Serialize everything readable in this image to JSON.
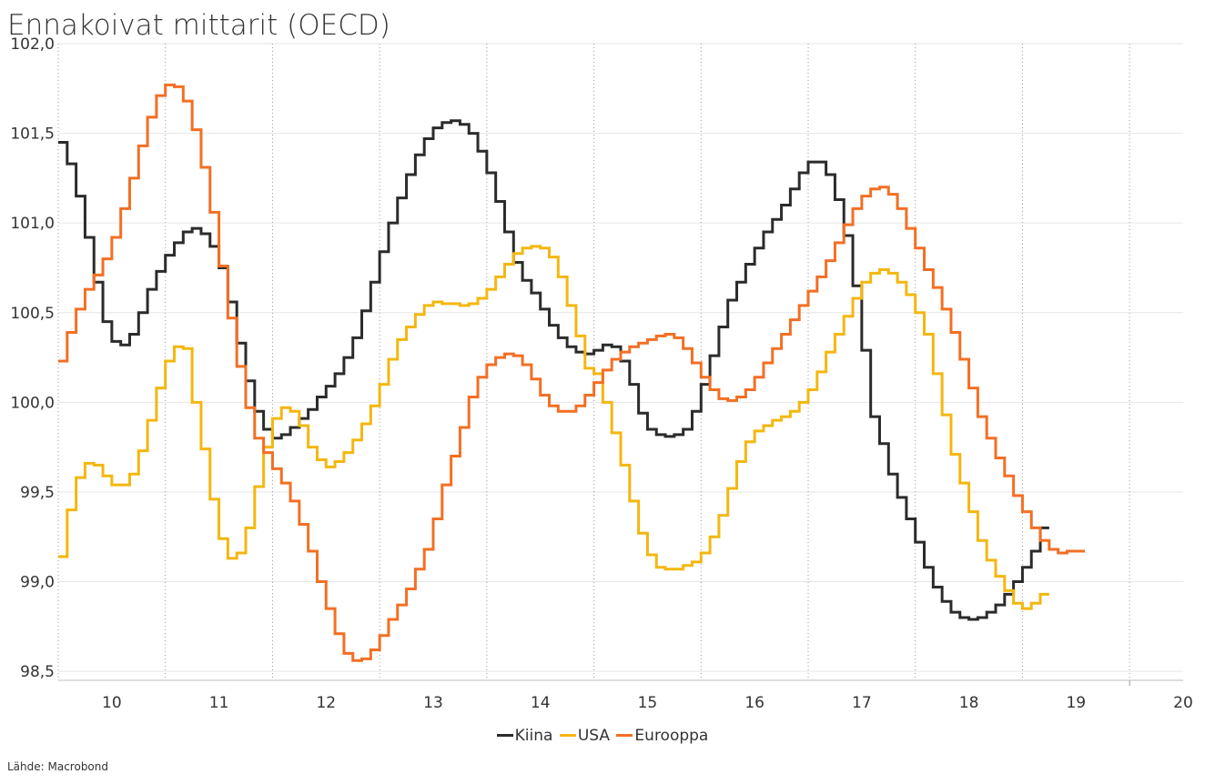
{
  "title": "Ennakoivat mittarit (OECD)",
  "source": "Lähde: Macrobond",
  "chart_data": {
    "type": "line",
    "step": true,
    "title": "Ennakoivat mittarit (OECD)",
    "xlabel": "",
    "ylabel": "",
    "xlim": [
      2009.5,
      2020.0
    ],
    "ylim": [
      98.45,
      102.0
    ],
    "yticks": [
      98.5,
      99.0,
      99.5,
      100.0,
      100.5,
      101.0,
      101.5,
      102.0
    ],
    "ytick_labels": [
      "98,5",
      "99,0",
      "99,5",
      "100,0",
      "100,5",
      "101,0",
      "101,5",
      "102,0"
    ],
    "xtick_labels": [
      "10",
      "11",
      "12",
      "13",
      "14",
      "15",
      "16",
      "17",
      "18",
      "19",
      "20"
    ],
    "xtick_positions": [
      2010,
      2011,
      2012,
      2013,
      2014,
      2015,
      2016,
      2017,
      2018,
      2019,
      2020
    ],
    "year_boundaries": [
      2009.5,
      2010.5,
      2011.5,
      2012.5,
      2013.5,
      2014.5,
      2015.5,
      2016.5,
      2017.5,
      2018.5,
      2019.5
    ],
    "grid": true,
    "legend_position": "bottom-center",
    "x_start": 2009.5,
    "x_step": 0.083333,
    "series": [
      {
        "name": "Kiina",
        "color": "#2b2b2b",
        "values": [
          101.45,
          101.33,
          101.15,
          100.92,
          100.67,
          100.45,
          100.34,
          100.32,
          100.38,
          100.5,
          100.63,
          100.73,
          100.82,
          100.89,
          100.95,
          100.97,
          100.94,
          100.87,
          100.75,
          100.56,
          100.33,
          100.12,
          99.95,
          99.85,
          99.8,
          99.82,
          99.86,
          99.91,
          99.96,
          100.03,
          100.09,
          100.16,
          100.25,
          100.36,
          100.51,
          100.67,
          100.84,
          101.0,
          101.14,
          101.27,
          101.38,
          101.47,
          101.53,
          101.56,
          101.57,
          101.55,
          101.5,
          101.4,
          101.28,
          101.12,
          100.95,
          100.78,
          100.68,
          100.61,
          100.52,
          100.43,
          100.36,
          100.31,
          100.28,
          100.27,
          100.29,
          100.32,
          100.31,
          100.23,
          100.1,
          99.94,
          99.85,
          99.82,
          99.81,
          99.82,
          99.85,
          99.95,
          100.1,
          100.26,
          100.42,
          100.57,
          100.67,
          100.77,
          100.86,
          100.95,
          101.02,
          101.1,
          101.19,
          101.28,
          101.34,
          101.34,
          101.27,
          101.13,
          100.93,
          100.65,
          100.29,
          99.92,
          99.77,
          99.6,
          99.47,
          99.35,
          99.22,
          99.08,
          98.97,
          98.89,
          98.83,
          98.8,
          98.79,
          98.8,
          98.83,
          98.87,
          98.93,
          99.0,
          99.08,
          99.17,
          99.3
        ]
      },
      {
        "name": "USA",
        "color": "#f4b70f",
        "values": [
          99.14,
          99.4,
          99.58,
          99.66,
          99.65,
          99.59,
          99.54,
          99.54,
          99.6,
          99.73,
          99.9,
          100.08,
          100.23,
          100.31,
          100.3,
          100.0,
          99.74,
          99.46,
          99.24,
          99.13,
          99.16,
          99.3,
          99.53,
          99.75,
          99.91,
          99.97,
          99.95,
          99.87,
          99.75,
          99.68,
          99.64,
          99.67,
          99.72,
          99.79,
          99.88,
          99.98,
          100.1,
          100.24,
          100.35,
          100.42,
          100.49,
          100.54,
          100.56,
          100.55,
          100.55,
          100.54,
          100.55,
          100.58,
          100.63,
          100.7,
          100.77,
          100.83,
          100.86,
          100.87,
          100.86,
          100.81,
          100.7,
          100.54,
          100.37,
          100.19,
          100.16,
          100.0,
          99.83,
          99.65,
          99.45,
          99.27,
          99.15,
          99.08,
          99.07,
          99.07,
          99.09,
          99.11,
          99.16,
          99.25,
          99.37,
          99.52,
          99.67,
          99.78,
          99.84,
          99.87,
          99.9,
          99.92,
          99.95,
          100.0,
          100.07,
          100.17,
          100.28,
          100.38,
          100.48,
          100.58,
          100.67,
          100.72,
          100.74,
          100.72,
          100.67,
          100.6,
          100.5,
          100.38,
          100.16,
          99.93,
          99.71,
          99.55,
          99.39,
          99.23,
          99.12,
          99.03,
          98.95,
          98.88,
          98.85,
          98.88,
          98.93
        ]
      },
      {
        "name": "Eurooppa",
        "color": "#f36f23",
        "values": [
          100.23,
          100.39,
          100.52,
          100.63,
          100.71,
          100.8,
          100.92,
          101.08,
          101.25,
          101.43,
          101.59,
          101.71,
          101.77,
          101.76,
          101.68,
          101.52,
          101.31,
          101.06,
          100.76,
          100.47,
          100.2,
          99.97,
          99.8,
          99.72,
          99.63,
          99.55,
          99.45,
          99.32,
          99.17,
          99.0,
          98.85,
          98.71,
          98.6,
          98.56,
          98.57,
          98.62,
          98.7,
          98.79,
          98.87,
          98.96,
          99.07,
          99.18,
          99.35,
          99.54,
          99.7,
          99.86,
          100.03,
          100.14,
          100.21,
          100.25,
          100.27,
          100.26,
          100.21,
          100.13,
          100.04,
          99.98,
          99.95,
          99.95,
          99.98,
          100.04,
          100.11,
          100.18,
          100.24,
          100.28,
          100.31,
          100.33,
          100.35,
          100.37,
          100.38,
          100.36,
          100.3,
          100.22,
          100.14,
          100.07,
          100.02,
          100.01,
          100.03,
          100.07,
          100.14,
          100.22,
          100.3,
          100.38,
          100.46,
          100.54,
          100.62,
          100.7,
          100.79,
          100.89,
          100.99,
          101.08,
          101.15,
          101.19,
          101.2,
          101.16,
          101.08,
          100.97,
          100.86,
          100.74,
          100.64,
          100.52,
          100.39,
          100.24,
          100.08,
          99.92,
          99.8,
          99.69,
          99.59,
          99.48,
          99.39,
          99.3,
          99.23,
          99.18,
          99.16,
          99.17,
          99.17
        ]
      }
    ]
  }
}
